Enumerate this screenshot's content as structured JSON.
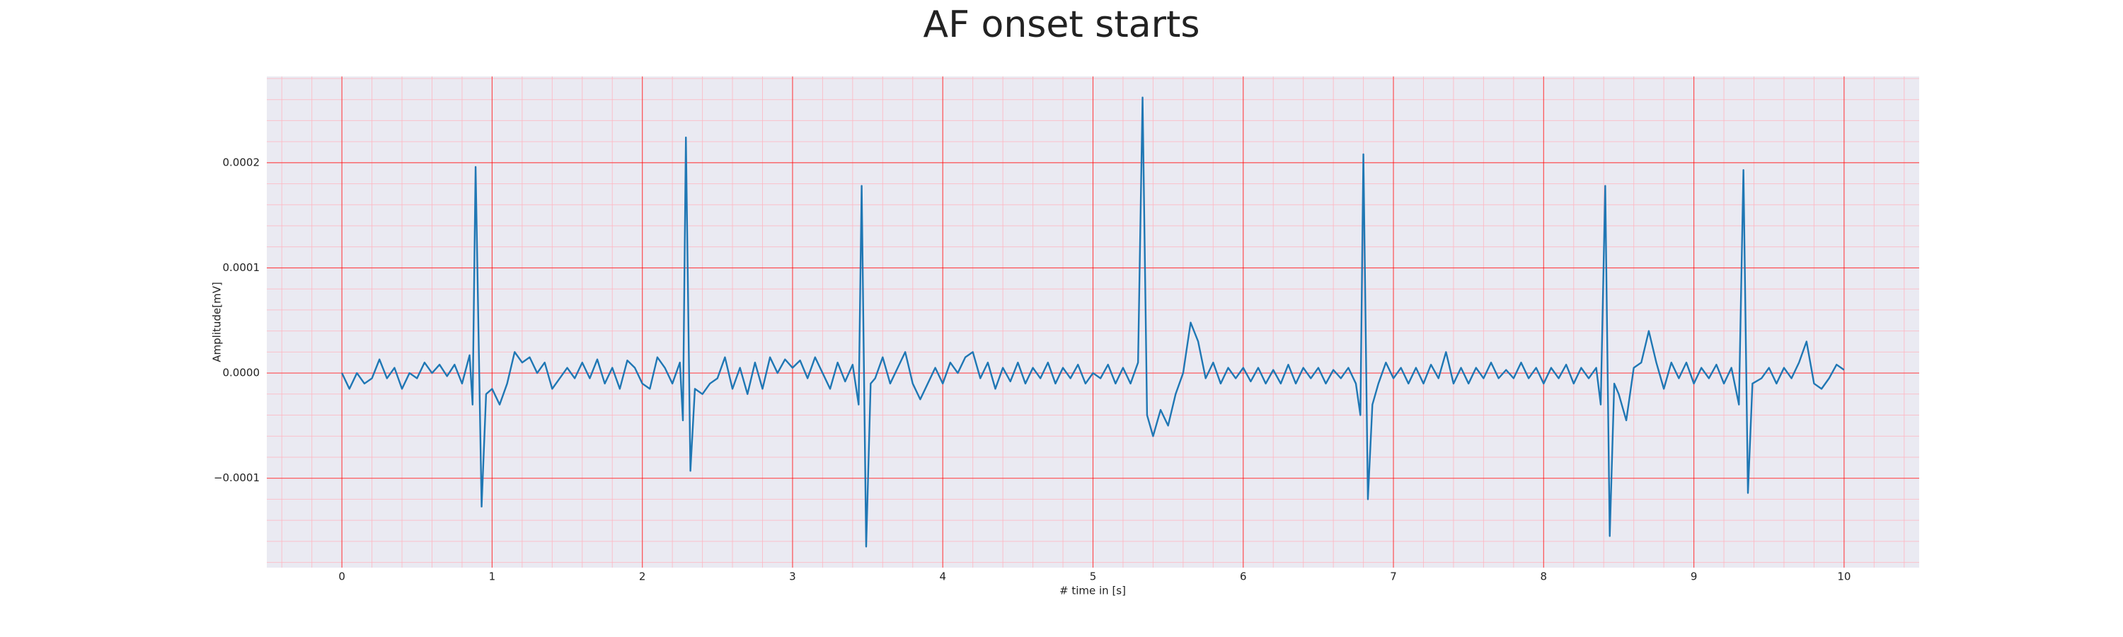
{
  "chart_data": {
    "type": "line",
    "title": "AF onset starts",
    "xlabel": "# time in [s]",
    "ylabel": "Amplitude[mV]",
    "x": [
      0,
      0.05,
      0.1,
      0.15,
      0.2,
      0.25,
      0.3,
      0.35,
      0.4,
      0.45,
      0.5,
      0.55,
      0.6,
      0.65,
      0.7,
      0.75,
      0.8,
      0.85,
      0.87,
      0.89,
      0.93,
      0.96,
      1.0,
      1.05,
      1.1,
      1.15,
      1.2,
      1.25,
      1.3,
      1.35,
      1.4,
      1.45,
      1.5,
      1.55,
      1.6,
      1.65,
      1.7,
      1.75,
      1.8,
      1.85,
      1.9,
      1.95,
      2.0,
      2.05,
      2.1,
      2.15,
      2.2,
      2.25,
      2.27,
      2.29,
      2.32,
      2.35,
      2.4,
      2.45,
      2.5,
      2.55,
      2.6,
      2.65,
      2.7,
      2.75,
      2.8,
      2.85,
      2.9,
      2.95,
      3.0,
      3.05,
      3.1,
      3.15,
      3.2,
      3.25,
      3.3,
      3.35,
      3.4,
      3.44,
      3.46,
      3.49,
      3.52,
      3.55,
      3.6,
      3.65,
      3.7,
      3.75,
      3.8,
      3.85,
      3.9,
      3.95,
      4.0,
      4.05,
      4.1,
      4.15,
      4.2,
      4.25,
      4.3,
      4.35,
      4.4,
      4.45,
      4.5,
      4.55,
      4.6,
      4.65,
      4.7,
      4.75,
      4.8,
      4.85,
      4.9,
      4.95,
      5.0,
      5.05,
      5.1,
      5.15,
      5.2,
      5.25,
      5.3,
      5.33,
      5.36,
      5.4,
      5.45,
      5.5,
      5.55,
      5.6,
      5.65,
      5.7,
      5.75,
      5.8,
      5.85,
      5.9,
      5.95,
      6.0,
      6.05,
      6.1,
      6.15,
      6.2,
      6.25,
      6.3,
      6.35,
      6.4,
      6.45,
      6.5,
      6.55,
      6.6,
      6.65,
      6.7,
      6.75,
      6.78,
      6.8,
      6.83,
      6.86,
      6.9,
      6.95,
      7.0,
      7.05,
      7.1,
      7.15,
      7.2,
      7.25,
      7.3,
      7.35,
      7.4,
      7.45,
      7.5,
      7.55,
      7.6,
      7.65,
      7.7,
      7.75,
      7.8,
      7.85,
      7.9,
      7.95,
      8.0,
      8.05,
      8.1,
      8.15,
      8.2,
      8.25,
      8.3,
      8.35,
      8.38,
      8.41,
      8.44,
      8.47,
      8.5,
      8.55,
      8.6,
      8.65,
      8.7,
      8.75,
      8.8,
      8.85,
      8.9,
      8.95,
      9.0,
      9.05,
      9.1,
      9.15,
      9.2,
      9.25,
      9.3,
      9.33,
      9.36,
      9.39,
      9.45,
      9.5,
      9.55,
      9.6,
      9.65,
      9.7,
      9.75,
      9.8,
      9.85,
      9.9,
      9.95,
      10.0
    ],
    "values": [
      0,
      -1.5e-05,
      0,
      -1e-05,
      -5e-06,
      1.3e-05,
      -5e-06,
      5e-06,
      -1.5e-05,
      0,
      -5e-06,
      1e-05,
      0,
      8e-06,
      -3e-06,
      8e-06,
      -1e-05,
      1.7e-05,
      -3e-05,
      0.000196,
      -0.000127,
      -2e-05,
      -1.5e-05,
      -3e-05,
      -1e-05,
      2e-05,
      1e-05,
      1.5e-05,
      0,
      1e-05,
      -1.5e-05,
      -5e-06,
      5e-06,
      -5e-06,
      1e-05,
      -5e-06,
      1.3e-05,
      -1e-05,
      5e-06,
      -1.5e-05,
      1.2e-05,
      5e-06,
      -1e-05,
      -1.5e-05,
      1.5e-05,
      5e-06,
      -1e-05,
      1e-05,
      -4.5e-05,
      0.000224,
      -9.3e-05,
      -1.5e-05,
      -2e-05,
      -1e-05,
      -5e-06,
      1.5e-05,
      -1.5e-05,
      5e-06,
      -2e-05,
      1e-05,
      -1.5e-05,
      1.5e-05,
      0,
      1.3e-05,
      5e-06,
      1.2e-05,
      -5e-06,
      1.5e-05,
      0,
      -1.5e-05,
      1e-05,
      -8e-06,
      8e-06,
      -3e-05,
      0.000178,
      -0.000165,
      -1e-05,
      -5e-06,
      1.5e-05,
      -1e-05,
      5e-06,
      2e-05,
      -1e-05,
      -2.5e-05,
      -1e-05,
      5e-06,
      -1e-05,
      1e-05,
      0,
      1.5e-05,
      2e-05,
      -5e-06,
      1e-05,
      -1.5e-05,
      5e-06,
      -8e-06,
      1e-05,
      -1e-05,
      5e-06,
      -5e-06,
      1e-05,
      -1e-05,
      5e-06,
      -5e-06,
      8e-06,
      -1e-05,
      0,
      -5e-06,
      8e-06,
      -1e-05,
      5e-06,
      -1e-05,
      1e-05,
      0.000262,
      -4e-05,
      -6e-05,
      -3.5e-05,
      -5e-05,
      -2e-05,
      0,
      4.8e-05,
      3e-05,
      -5e-06,
      1e-05,
      -1e-05,
      5e-06,
      -5e-06,
      5e-06,
      -8e-06,
      5e-06,
      -1e-05,
      3e-06,
      -1e-05,
      8e-06,
      -1e-05,
      5e-06,
      -5e-06,
      5e-06,
      -1e-05,
      3e-06,
      -5e-06,
      5e-06,
      -1e-05,
      -4e-05,
      0.000208,
      -0.00012,
      -3e-05,
      -1e-05,
      1e-05,
      -5e-06,
      5e-06,
      -1e-05,
      5e-06,
      -1e-05,
      8e-06,
      -5e-06,
      2e-05,
      -1e-05,
      5e-06,
      -1e-05,
      5e-06,
      -5e-06,
      1e-05,
      -5e-06,
      3e-06,
      -5e-06,
      1e-05,
      -5e-06,
      5e-06,
      -1e-05,
      5e-06,
      -5e-06,
      8e-06,
      -1e-05,
      5e-06,
      -5e-06,
      5e-06,
      -3e-05,
      0.000178,
      -0.000155,
      -1e-05,
      -2e-05,
      -4.5e-05,
      5e-06,
      1e-05,
      4e-05,
      1e-05,
      -1.5e-05,
      1e-05,
      -5e-06,
      1e-05,
      -1e-05,
      5e-06,
      -5e-06,
      8e-06,
      -1e-05,
      5e-06,
      -3e-05,
      0.000193,
      -0.000114,
      -1e-05,
      -5e-06,
      5e-06,
      -1e-05,
      5e-06,
      -5e-06,
      1e-05,
      3e-05,
      -1e-05,
      -1.5e-05,
      -5e-06,
      8e-06,
      3e-06
    ],
    "color": "#1f77b4",
    "xlim": [
      -0.5,
      10.5
    ],
    "xticks": [
      0,
      1,
      2,
      3,
      4,
      5,
      6,
      7,
      8,
      9,
      10
    ],
    "ylim": [
      -0.000185,
      0.000282
    ],
    "yticks": [
      {
        "value": -0.0001,
        "label": "−0.0001"
      },
      {
        "value": 0,
        "label": "0.0000"
      },
      0.0001,
      0.0002
    ],
    "grid": true,
    "minor_divisions": 5
  }
}
